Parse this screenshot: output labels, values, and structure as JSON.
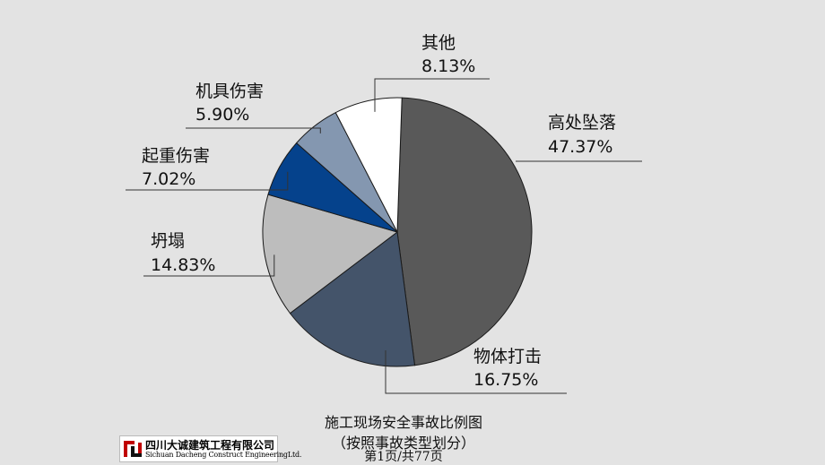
{
  "chart_data": {
    "type": "pie",
    "slices": [
      {
        "label": "高处坠落",
        "value": 47.37,
        "value_text": "47.37%",
        "color": "#595959"
      },
      {
        "label": "物体打击",
        "value": 16.75,
        "value_text": "16.75%",
        "color": "#44546a"
      },
      {
        "label": "坍塌",
        "value": 14.83,
        "value_text": "14.83%",
        "color": "#bdbdbd"
      },
      {
        "label": "起重伤害",
        "value": 7.02,
        "value_text": "7.02%",
        "color": "#05428c"
      },
      {
        "label": "机具伤害",
        "value": 5.9,
        "value_text": "5.90%",
        "color": "#8497b0"
      },
      {
        "label": "其他",
        "value": 8.13,
        "value_text": "8.13%",
        "color": "#ffffff"
      }
    ],
    "title": "施工现场安全事故比例图",
    "subtitle": "（按照事故类型划分）"
  },
  "footer": {
    "page_indicator": "第1页/共77页",
    "logo": {
      "name_cn": "四川大诚建筑工程有限公司",
      "name_en": "Sichuan Dacheng Construct EngineeringLtd."
    }
  }
}
